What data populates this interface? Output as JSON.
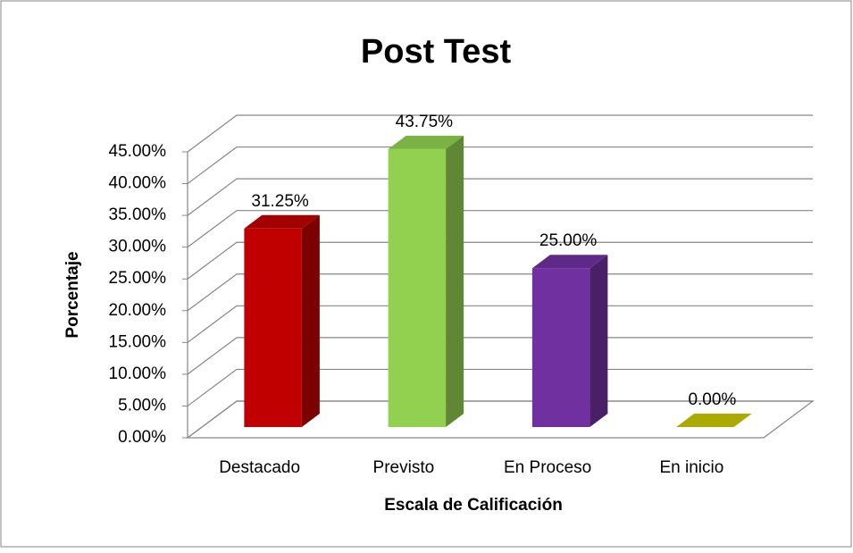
{
  "chart_data": {
    "type": "bar3d",
    "title": "Post Test",
    "x_label": "Escala de Calificación",
    "y_label": "Porcentaje",
    "categories": [
      "Destacado",
      "Previsto",
      "En Proceso",
      "En inicio"
    ],
    "values": [
      31.25,
      43.75,
      25,
      0
    ],
    "value_labels": [
      "31.25%",
      "43.75%",
      "25.00%",
      "0.00%"
    ],
    "colors": [
      "#c00000",
      "#92d050",
      "#7030a0",
      "#c8c800"
    ],
    "ylim": [
      0,
      45
    ],
    "yticks": [
      {
        "value": 0,
        "label": "0.00%"
      },
      {
        "value": 5,
        "label": "5.00%"
      },
      {
        "value": 10,
        "label": "10.00%"
      },
      {
        "value": 15,
        "label": "15.00%"
      },
      {
        "value": 20,
        "label": "20.00%"
      },
      {
        "value": 25,
        "label": "25.00%"
      },
      {
        "value": 30,
        "label": "30.00%"
      },
      {
        "value": 35,
        "label": "35.00%"
      },
      {
        "value": 40,
        "label": "40.00%"
      },
      {
        "value": 45,
        "label": "45.00%"
      }
    ],
    "grid": true
  }
}
